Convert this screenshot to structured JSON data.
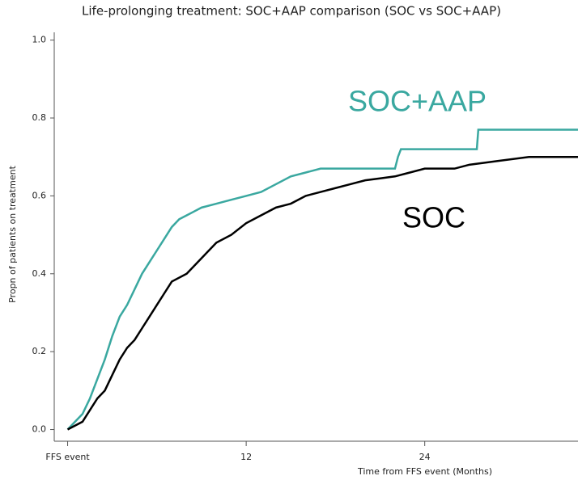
{
  "chart_data": {
    "type": "line",
    "title": "Life-prolonging treatment: SOC+AAP comparison (SOC vs SOC+AAP)",
    "x_label": "Time from FFS event (Months)",
    "y_label": "Propn of patients on treatment",
    "xlim": [
      -0.9,
      34.3
    ],
    "ylim": [
      -0.03,
      1.02
    ],
    "xticks": [
      {
        "value": 0,
        "label": "FFS event"
      },
      12,
      24
    ],
    "yticks": [
      {
        "value": 0,
        "label": "0.0"
      },
      0.2,
      0.4,
      0.6,
      0.8,
      {
        "value": 1,
        "label": "1.0"
      }
    ],
    "grid": false,
    "series": [
      {
        "name": "SOC+AAP",
        "color": "#3aa8a0",
        "x": [
          0,
          0.5,
          1,
          1.5,
          2,
          2.5,
          3,
          3.5,
          4,
          4.5,
          5,
          5.5,
          6,
          6.5,
          7,
          7.5,
          8,
          8.5,
          9,
          10,
          11,
          12,
          13,
          14,
          15,
          16,
          17,
          22,
          22.2,
          22.4,
          27.5,
          27.6,
          34.3
        ],
        "values": [
          0,
          0.02,
          0.04,
          0.08,
          0.13,
          0.18,
          0.24,
          0.29,
          0.32,
          0.36,
          0.4,
          0.43,
          0.46,
          0.49,
          0.52,
          0.54,
          0.55,
          0.56,
          0.57,
          0.58,
          0.59,
          0.6,
          0.61,
          0.63,
          0.65,
          0.66,
          0.67,
          0.67,
          0.7,
          0.72,
          0.72,
          0.77,
          0.77
        ]
      },
      {
        "name": "SOC",
        "color": "#000000",
        "x": [
          0,
          1,
          1.5,
          2,
          2.5,
          3,
          3.5,
          4,
          4.5,
          5,
          5.5,
          6,
          6.5,
          7,
          8,
          8.5,
          9,
          10,
          11,
          12,
          13,
          14,
          15,
          16,
          17,
          18,
          19,
          20,
          21,
          22,
          23,
          24,
          26,
          27,
          29,
          31,
          34.3
        ],
        "values": [
          0,
          0.02,
          0.05,
          0.08,
          0.1,
          0.14,
          0.18,
          0.21,
          0.23,
          0.26,
          0.29,
          0.32,
          0.35,
          0.38,
          0.4,
          0.42,
          0.44,
          0.48,
          0.5,
          0.53,
          0.55,
          0.57,
          0.58,
          0.6,
          0.61,
          0.62,
          0.63,
          0.64,
          0.645,
          0.65,
          0.66,
          0.67,
          0.67,
          0.68,
          0.69,
          0.7,
          0.7
        ]
      }
    ]
  }
}
